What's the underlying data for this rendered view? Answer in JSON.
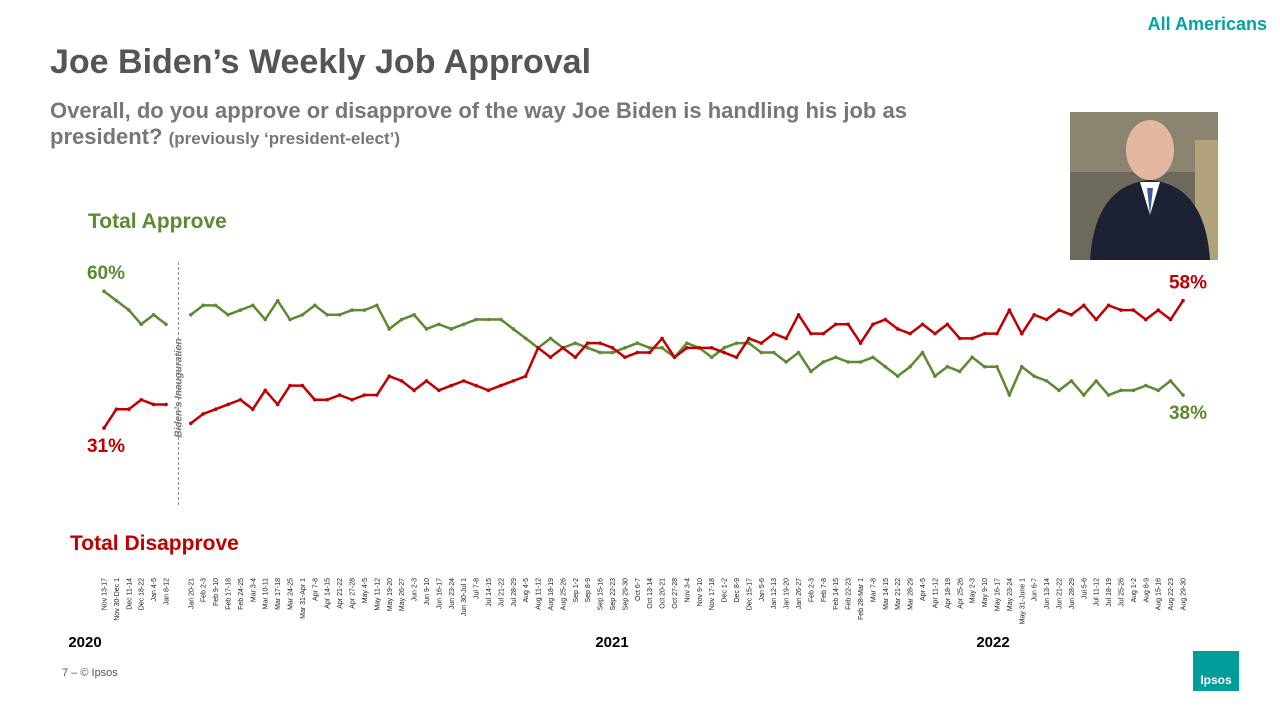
{
  "chart_data": {
    "type": "line",
    "title": "Joe Biden’s Weekly Job Approval",
    "subtitle": "Overall, do you approve or disapprove of the way Joe Biden is handling his job as president?",
    "subtitle_note": "(previously ‘president-elect’)",
    "audience": "All Americans",
    "annotation": "Biden’s Inauguration",
    "years": [
      "2020",
      "2021",
      "2022"
    ],
    "footer": "7 –  © Ipsos",
    "logo": "Ipsos",
    "categories": [
      "Nov 13-17",
      "Nov 30-Dec 1",
      "Dec 11-14",
      "Dec 18-22",
      "Jan 4-5",
      "Jan 8-12",
      null,
      "Jan 20-21",
      "Feb 2-3",
      "Feb 9-10",
      "Feb 17-18",
      "Feb 24-25",
      "Mar 3-4",
      "Mar 10-11",
      "Mar 17-18",
      "Mar 24-25",
      "Mar 31-Apr 1",
      "Apr 7-8",
      "Apr 14-15",
      "Apr 21-22",
      "Apr 27-28",
      "May 4-5",
      "May 11-12",
      "May 19-20",
      "May 26-27",
      "Jun 2-3",
      "Jun 9-10",
      "Jun 16-17",
      "Jun 23-24",
      "Jun 30-Jul 1",
      "Jul 7-8",
      "Jul 14-15",
      "Jul 21-22",
      "Jul 28-29",
      "Aug 4-5",
      "Aug 11-12",
      "Aug 18-19",
      "Aug 25-26",
      "Sep 1-2",
      "Sep 8-9",
      "Sep 15-16",
      "Sep 22-23",
      "Sep 29-30",
      "Oct 6-7",
      "Oct 13-14",
      "Oct 20-21",
      "Oct 27-28",
      "Nov 3-4",
      "Nov 9-10",
      "Nov 17-18",
      "Dec 1-2",
      "Dec 8-9",
      "Dec 15-17",
      "Jan 5-6",
      "Jan 12-13",
      "Jan 19-20",
      "Jan 26-27",
      "Feb 2-3",
      "Feb 7-8",
      "Feb 14-15",
      "Feb 22-23",
      "Feb 28-Mar 1",
      "Mar 7-8",
      "Mar 14-15",
      "Mar 21-22",
      "Mar 28-29",
      "Apr 4-5",
      "Apr 11-12",
      "Apr 18-19",
      "Apr 25-26",
      "May 2-3",
      "May 9-10",
      "May 16-17",
      "May 23-24",
      "May 31-June 1",
      "Jun 6-7",
      "Jun 13-14",
      "Jun 21-22",
      "Jun 28-29",
      "Jul 5-6",
      "Jul 11-12",
      "Jul 18-19",
      "Jul 25-26",
      "Aug 1-2",
      "Aug 8-9",
      "Aug 15-16",
      "Aug 22-23",
      "Aug 29-30"
    ],
    "series": [
      {
        "name": "Total Approve",
        "color": "#5b8a32",
        "values": [
          60,
          58,
          56,
          53,
          55,
          53,
          null,
          55,
          57,
          57,
          55,
          56,
          57,
          54,
          58,
          54,
          55,
          57,
          55,
          55,
          56,
          56,
          57,
          52,
          54,
          55,
          52,
          53,
          52,
          53,
          54,
          54,
          54,
          52,
          50,
          48,
          50,
          48,
          49,
          48,
          47,
          47,
          48,
          49,
          48,
          48,
          46,
          49,
          48,
          46,
          48,
          49,
          49,
          47,
          47,
          45,
          47,
          43,
          45,
          46,
          45,
          45,
          46,
          44,
          42,
          44,
          47,
          42,
          44,
          43,
          46,
          44,
          44,
          38,
          44,
          42,
          41,
          39,
          41,
          38,
          41,
          38,
          39,
          39,
          40,
          39,
          41,
          38
        ],
        "value_labels": [
          "60%",
          null,
          null,
          null,
          null,
          null,
          null,
          null,
          null,
          null,
          null,
          null,
          null,
          null,
          null,
          null,
          null,
          null,
          null,
          null,
          null,
          null,
          null,
          null,
          null,
          null,
          null,
          null,
          null,
          null,
          null,
          null,
          null,
          null,
          null,
          null,
          null,
          null,
          null,
          null,
          null,
          null,
          null,
          null,
          null,
          null,
          null,
          null,
          null,
          null,
          null,
          null,
          null,
          null,
          null,
          null,
          null,
          null,
          null,
          null,
          null,
          null,
          null,
          null,
          null,
          null,
          null,
          null,
          null,
          null,
          null,
          null,
          null,
          null,
          null,
          null,
          null,
          null,
          null,
          null,
          null,
          null,
          null,
          null,
          null,
          null,
          null,
          "38%"
        ]
      },
      {
        "name": "Total Disapprove",
        "color": "#c00000",
        "values": [
          31,
          35,
          35,
          37,
          36,
          36,
          null,
          32,
          34,
          35,
          36,
          37,
          35,
          39,
          36,
          40,
          40,
          37,
          37,
          38,
          37,
          38,
          38,
          42,
          41,
          39,
          41,
          39,
          40,
          41,
          40,
          39,
          40,
          41,
          42,
          48,
          46,
          48,
          46,
          49,
          49,
          48,
          46,
          47,
          47,
          50,
          46,
          48,
          48,
          48,
          47,
          46,
          50,
          49,
          51,
          50,
          55,
          51,
          51,
          53,
          53,
          49,
          53,
          54,
          52,
          51,
          53,
          51,
          53,
          50,
          50,
          51,
          51,
          56,
          51,
          55,
          54,
          56,
          55,
          57,
          54,
          57,
          56,
          56,
          54,
          56,
          54,
          58
        ],
        "value_labels": [
          "31%",
          null,
          null,
          null,
          null,
          null,
          null,
          null,
          null,
          null,
          null,
          null,
          null,
          null,
          null,
          null,
          null,
          null,
          null,
          null,
          null,
          null,
          null,
          null,
          null,
          null,
          null,
          null,
          null,
          null,
          null,
          null,
          null,
          null,
          null,
          null,
          null,
          null,
          null,
          null,
          null,
          null,
          null,
          null,
          null,
          null,
          null,
          null,
          null,
          null,
          null,
          null,
          null,
          null,
          null,
          null,
          null,
          null,
          null,
          null,
          null,
          null,
          null,
          null,
          null,
          null,
          null,
          null,
          null,
          null,
          null,
          null,
          null,
          null,
          null,
          null,
          null,
          null,
          null,
          null,
          null,
          null,
          null,
          null,
          null,
          null,
          null,
          "58%"
        ]
      }
    ],
    "ylim": [
      20,
      70
    ]
  }
}
